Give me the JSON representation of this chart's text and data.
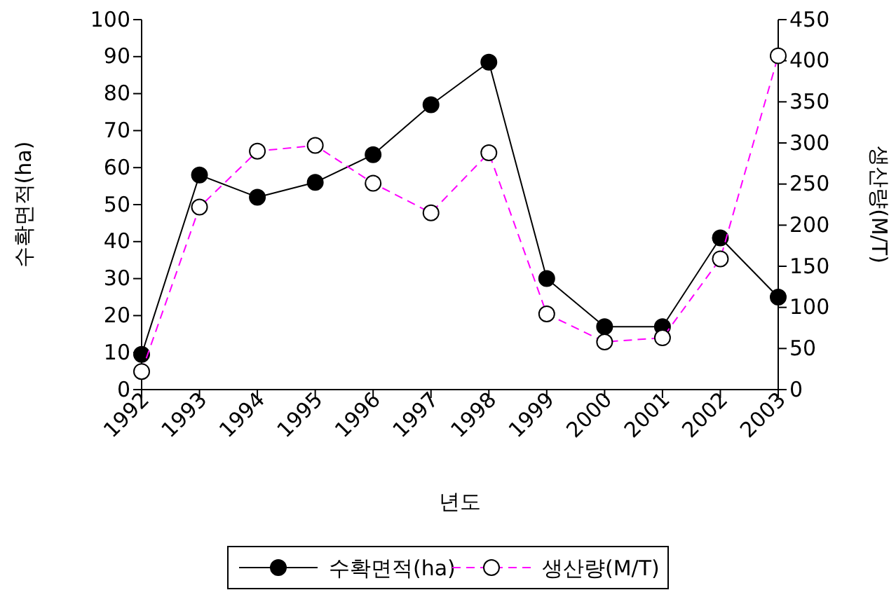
{
  "chart_data": {
    "type": "line",
    "xlabel": "년도",
    "ylabel": "수확면적(ha)",
    "y2label": "생산량(M/T)",
    "categories": [
      "1992",
      "1993",
      "1994",
      "1995",
      "1996",
      "1997",
      "1998",
      "1999",
      "2000",
      "2001",
      "2002",
      "2003"
    ],
    "series": [
      {
        "name": "수확면적(ha)",
        "color": "#000000",
        "line_style": "solid",
        "values": [
          9.5,
          58,
          52,
          56,
          63.5,
          77,
          88.5,
          30,
          17,
          17,
          41,
          25
        ]
      },
      {
        "name": "생산량(M/T)",
        "color": "#ff00ff",
        "line_style": "dashed",
        "axis": "y2",
        "values": [
          22,
          222,
          290,
          297,
          251,
          215,
          288,
          92,
          58,
          63,
          159,
          406
        ]
      }
    ],
    "ylim": [
      0,
      100
    ],
    "yticks": [
      0,
      10,
      20,
      30,
      40,
      50,
      60,
      70,
      80,
      90,
      100
    ],
    "y2lim": [
      0,
      450
    ],
    "y2ticks": [
      0,
      50,
      100,
      150,
      200,
      250,
      300,
      350,
      400,
      450
    ],
    "marker": "circle",
    "grid": false,
    "legend": "bottom"
  }
}
